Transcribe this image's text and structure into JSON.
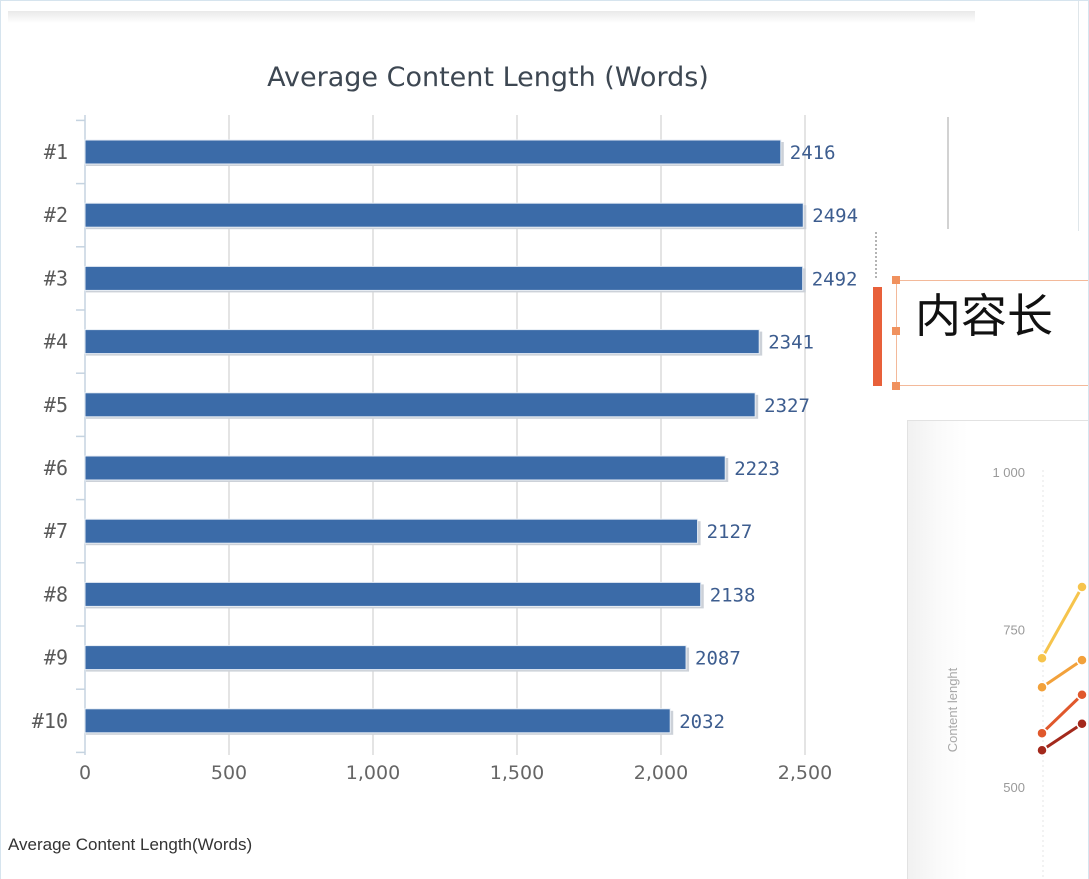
{
  "page": {
    "caption": "Average Content Length(Words)"
  },
  "textbox": {
    "text": "内容长",
    "accent_color": "#e8603a"
  },
  "chart_data": [
    {
      "type": "bar",
      "orientation": "horizontal",
      "title": "Average Content Length (Words)",
      "categories": [
        "#1",
        "#2",
        "#3",
        "#4",
        "#5",
        "#6",
        "#7",
        "#8",
        "#9",
        "#10"
      ],
      "values": [
        2416,
        2494,
        2492,
        2341,
        2327,
        2223,
        2127,
        2138,
        2087,
        2032
      ],
      "data_labels": true,
      "xlim": [
        0,
        2500
      ],
      "xticks": [
        0,
        500,
        1000,
        1500,
        2000,
        2500
      ],
      "xtick_labels": [
        "0",
        "500",
        "1,000",
        "1,500",
        "2,000",
        "2,500"
      ],
      "grid": true,
      "bar_color": "#3b6ba8"
    },
    {
      "type": "line",
      "ylabel": "Content lenght",
      "ylim": [
        500,
        1000
      ],
      "yticks": [
        1000,
        750,
        500
      ],
      "ytick_labels": [
        "1 000",
        "750",
        "500"
      ],
      "grid": true,
      "series": [
        {
          "color": "#f6c44c",
          "values": [
            706,
            819
          ]
        },
        {
          "color": "#f2a13b",
          "values": [
            660,
            703
          ]
        },
        {
          "color": "#e0582c",
          "values": [
            587,
            648
          ]
        },
        {
          "color": "#a3291c",
          "values": [
            560,
            602
          ]
        }
      ]
    }
  ]
}
